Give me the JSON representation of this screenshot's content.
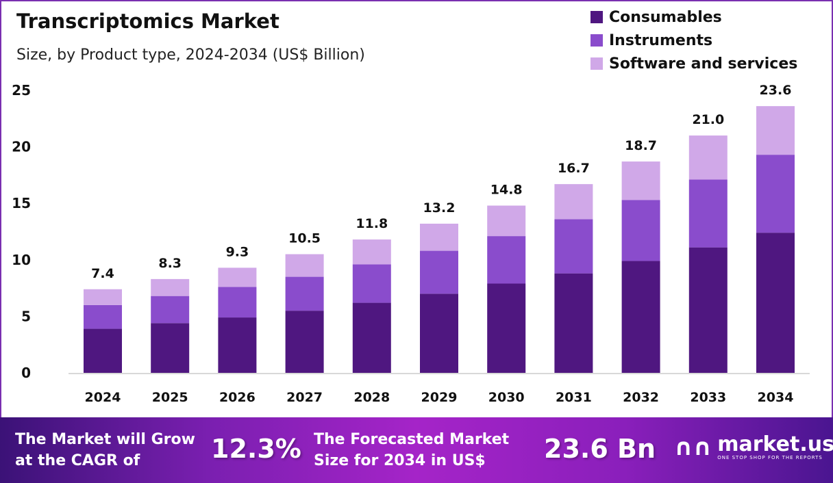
{
  "chart_data": {
    "type": "bar",
    "stacked": true,
    "title": "Transcriptomics Market",
    "subtitle": "Size, by Product type, 2024-2034 (US$ Billion)",
    "categories": [
      "2024",
      "2025",
      "2026",
      "2027",
      "2028",
      "2029",
      "2030",
      "2031",
      "2032",
      "2033",
      "2034"
    ],
    "series": [
      {
        "name": "Consumables",
        "color": "#4f1780",
        "values": [
          3.9,
          4.4,
          4.9,
          5.5,
          6.2,
          7.0,
          7.9,
          8.8,
          9.9,
          11.1,
          12.4
        ]
      },
      {
        "name": "Instruments",
        "color": "#8a4ccc",
        "values": [
          2.1,
          2.4,
          2.7,
          3.0,
          3.4,
          3.8,
          4.2,
          4.8,
          5.4,
          6.0,
          6.9
        ]
      },
      {
        "name": "Software and services",
        "color": "#d0a8e8",
        "values": [
          1.4,
          1.5,
          1.7,
          2.0,
          2.2,
          2.4,
          2.7,
          3.1,
          3.4,
          3.9,
          4.3
        ]
      }
    ],
    "totals": [
      "7.4",
      "8.3",
      "9.3",
      "10.5",
      "11.8",
      "13.2",
      "14.8",
      "16.7",
      "18.7",
      "21.0",
      "23.6"
    ],
    "yticks": [
      "0",
      "5",
      "10",
      "15",
      "20",
      "25"
    ],
    "ylim": [
      0,
      25
    ],
    "grid": false,
    "legend_position": "top-right"
  },
  "footer": {
    "cagr_label_line1": "The Market will Grow",
    "cagr_label_line2": "at the CAGR of",
    "cagr_value": "12.3%",
    "forecast_label_line1": "The Forecasted Market",
    "forecast_label_line2": "Size for 2034 in US$",
    "forecast_value": "23.6 Bn",
    "logo_name": "market.us",
    "logo_tagline": "ONE STOP SHOP FOR THE REPORTS"
  }
}
